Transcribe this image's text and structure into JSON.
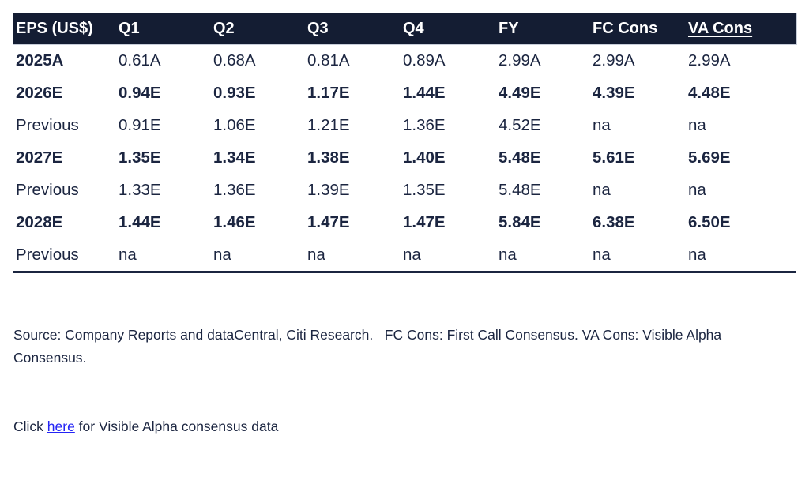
{
  "table": {
    "columns": [
      "EPS (US$)",
      "Q1",
      "Q2",
      "Q3",
      "Q4",
      "FY",
      "FC Cons",
      "VA Cons"
    ],
    "rows": [
      {
        "label": "2025A",
        "cells": [
          "0.61A",
          "0.68A",
          "0.81A",
          "0.89A",
          "2.99A",
          "2.99A",
          "2.99A"
        ]
      },
      {
        "label": "2026E",
        "cells": [
          "0.94E",
          "0.93E",
          "1.17E",
          "1.44E",
          "4.49E",
          "4.39E",
          "4.48E"
        ]
      },
      {
        "label": "Previous",
        "cells": [
          "0.91E",
          "1.06E",
          "1.21E",
          "1.36E",
          "4.52E",
          "na",
          "na"
        ]
      },
      {
        "label": "2027E",
        "cells": [
          "1.35E",
          "1.34E",
          "1.38E",
          "1.40E",
          "5.48E",
          "5.61E",
          "5.69E"
        ]
      },
      {
        "label": "Previous",
        "cells": [
          "1.33E",
          "1.36E",
          "1.39E",
          "1.35E",
          "5.48E",
          "na",
          "na"
        ]
      },
      {
        "label": "2028E",
        "cells": [
          "1.44E",
          "1.46E",
          "1.47E",
          "1.47E",
          "5.84E",
          "6.38E",
          "6.50E"
        ]
      },
      {
        "label": "Previous",
        "cells": [
          "na",
          "na",
          "na",
          "na",
          "na",
          "na",
          "na"
        ]
      }
    ]
  },
  "footer": {
    "source_text": "Source: Company Reports and dataCentral, Citi Research.   FC Cons: First Call Consensus. VA Cons: Visible Alpha Consensus.",
    "click_prefix": "Click ",
    "link_text": "here",
    "click_suffix": " for Visible Alpha consensus data"
  },
  "colors": {
    "header_background": "#141d33",
    "body_text": "#1b2540",
    "rule": "#1b2540",
    "link": "#2424f5"
  }
}
